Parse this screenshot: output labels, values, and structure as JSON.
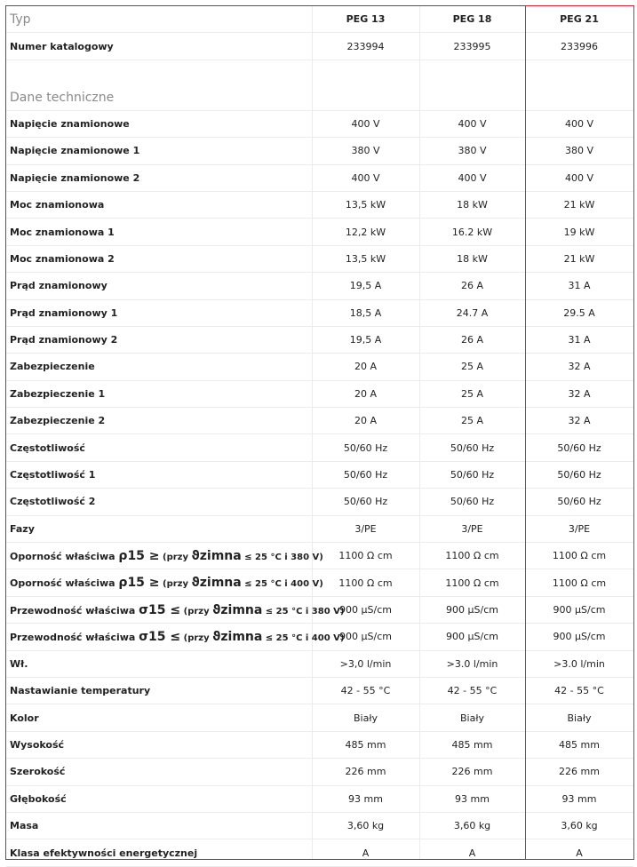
{
  "header": {
    "label": "Typ",
    "models": [
      "PEG 13",
      "PEG 18",
      "PEG 21"
    ]
  },
  "catalog": {
    "label": "Numer katalogowy",
    "values": [
      "233994",
      "233995",
      "233996"
    ]
  },
  "section_title": "Dane techniczne",
  "rows": [
    {
      "label": "Napięcie znamionowe",
      "values": [
        "400 V",
        "400 V",
        "400 V"
      ]
    },
    {
      "label": "Napięcie znamionowe 1",
      "values": [
        "380 V",
        "380 V",
        "380 V"
      ]
    },
    {
      "label": "Napięcie znamionowe 2",
      "values": [
        "400 V",
        "400 V",
        "400 V"
      ]
    },
    {
      "label": "Moc znamionowa",
      "values": [
        "13,5 kW",
        "18 kW",
        "21 kW"
      ]
    },
    {
      "label": "Moc znamionowa 1",
      "values": [
        "12,2 kW",
        "16.2 kW",
        "19 kW"
      ]
    },
    {
      "label": "Moc znamionowa 2",
      "values": [
        "13,5 kW",
        "18 kW",
        "21 kW"
      ]
    },
    {
      "label": "Prąd znamionowy",
      "values": [
        "19,5 A",
        "26 A",
        "31 A"
      ]
    },
    {
      "label": "Prąd znamionowy 1",
      "values": [
        "18,5 A",
        "24.7 A",
        "29.5 A"
      ]
    },
    {
      "label": "Prąd znamionowy 2",
      "values": [
        "19,5 A",
        "26 A",
        "31 A"
      ]
    },
    {
      "label": "Zabezpieczenie",
      "values": [
        "20 A",
        "25 A",
        "32 A"
      ]
    },
    {
      "label": "Zabezpieczenie 1",
      "values": [
        "20 A",
        "25 A",
        "32 A"
      ]
    },
    {
      "label": "Zabezpieczenie 2",
      "values": [
        "20 A",
        "25 A",
        "32 A"
      ]
    },
    {
      "label": "Częstotliwość",
      "values": [
        "50/60 Hz",
        "50/60 Hz",
        "50/60 Hz"
      ]
    },
    {
      "label": "Częstotliwość 1",
      "values": [
        "50/60 Hz",
        "50/60 Hz",
        "50/60 Hz"
      ]
    },
    {
      "label": "Częstotliwość 2",
      "values": [
        "50/60 Hz",
        "50/60 Hz",
        "50/60 Hz"
      ]
    },
    {
      "label": "Fazy",
      "values": [
        "3/PE",
        "3/PE",
        "3/PE"
      ]
    },
    {
      "label_parts": [
        "Oporność właściwa ",
        "ρ15 ≥",
        " (przy ",
        "ϑzimna",
        " ≤ 25 °C i 380 V)"
      ],
      "values": [
        "1100 Ω cm",
        "1100 Ω cm",
        "1100 Ω cm"
      ]
    },
    {
      "label_parts": [
        "Oporność właściwa ",
        "ρ15 ≥",
        " (przy ",
        "ϑzimna",
        " ≤ 25 °C i 400 V)"
      ],
      "values": [
        "1100 Ω cm",
        "1100 Ω cm",
        "1100 Ω cm"
      ]
    },
    {
      "label_parts": [
        "Przewodność właściwa ",
        "σ15 ≤",
        " (przy ",
        "ϑzimna",
        " ≤ 25 °C i 380 V)"
      ],
      "values": [
        "900 µS/cm",
        "900 µS/cm",
        "900 µS/cm"
      ]
    },
    {
      "label_parts": [
        "Przewodność właściwa ",
        "σ15 ≤",
        " (przy ",
        "ϑzimna",
        " ≤ 25 °C i 400 V)"
      ],
      "values": [
        "900 µS/cm",
        "900 µS/cm",
        "900 µS/cm"
      ]
    },
    {
      "label": "Wł.",
      "values": [
        ">3,0 l/min",
        ">3.0 l/min",
        ">3.0 l/min"
      ]
    },
    {
      "label": "Nastawianie temperatury",
      "values": [
        "42 - 55 °C",
        "42 - 55 °C",
        "42 - 55 °C"
      ]
    },
    {
      "label": "Kolor",
      "values": [
        "Biały",
        "Biały",
        "Biały"
      ]
    },
    {
      "label": "Wysokość",
      "values": [
        "485 mm",
        "485 mm",
        "485 mm"
      ]
    },
    {
      "label": "Szerokość",
      "values": [
        "226 mm",
        "226 mm",
        "226 mm"
      ]
    },
    {
      "label": "Głębokość",
      "values": [
        "93 mm",
        "93 mm",
        "93 mm"
      ]
    },
    {
      "label": "Masa",
      "values": [
        "3,60 kg",
        "3,60 kg",
        "3,60 kg"
      ]
    },
    {
      "label": "Klasa efektywności energetycznej",
      "values": [
        "A",
        "A",
        "A"
      ]
    }
  ],
  "colors": {
    "highlight": "#d62838",
    "muted_text": "#8a8a8a",
    "grid": "#ececec"
  }
}
